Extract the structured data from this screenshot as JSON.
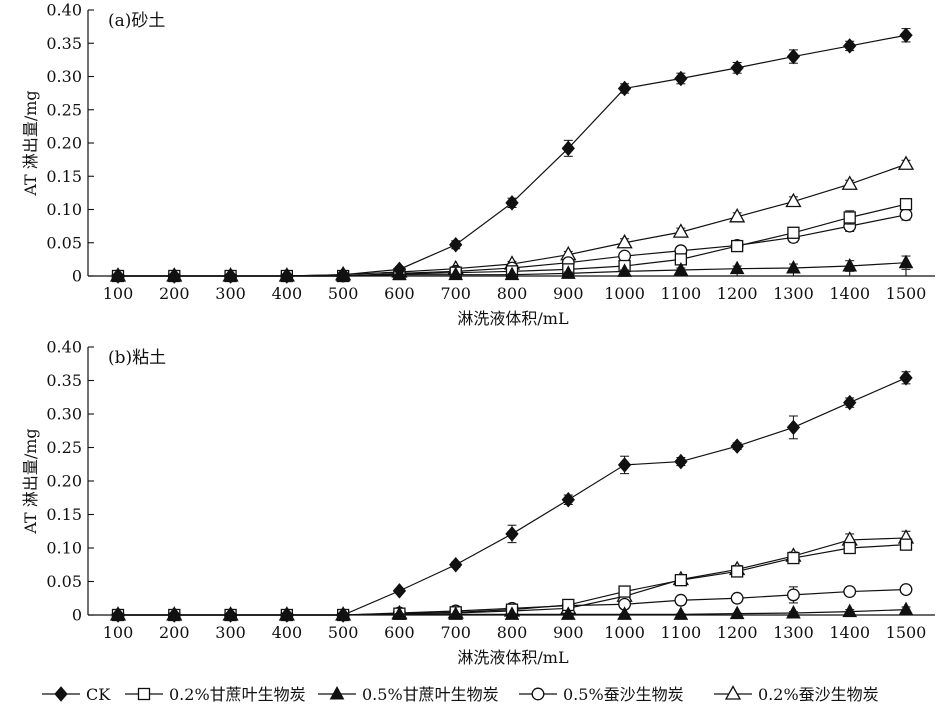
{
  "chart_data": [
    {
      "type": "line",
      "panel_label": "(a)砂土",
      "xlabel": "淋洗液体积/mL",
      "ylabel": "AT 淋出量/mg",
      "x": [
        100,
        200,
        300,
        400,
        500,
        600,
        700,
        800,
        900,
        1000,
        1100,
        1200,
        1300,
        1400,
        1500
      ],
      "xlim": [
        100,
        1500
      ],
      "ylim": [
        0,
        0.4
      ],
      "yticks": [
        "0",
        "0.05",
        "0.10",
        "0.15",
        "0.20",
        "0.25",
        "0.30",
        "0.35",
        "0.40"
      ],
      "grid": false,
      "series": [
        {
          "name": "CK",
          "marker": "diamond-filled",
          "values": [
            0,
            0,
            0,
            0,
            0.002,
            0.01,
            0.047,
            0.11,
            0.192,
            0.282,
            0.297,
            0.313,
            0.33,
            0.346,
            0.362
          ],
          "errors": [
            0,
            0,
            0,
            0,
            0.002,
            0.004,
            0.006,
            0.007,
            0.012,
            0.007,
            0.008,
            0.008,
            0.01,
            0.007,
            0.01
          ]
        },
        {
          "name": "0.2%甘蔗叶生物炭",
          "marker": "square-open",
          "values": [
            0,
            0,
            0,
            0,
            0,
            0.003,
            0.005,
            0.007,
            0.01,
            0.015,
            0.025,
            0.045,
            0.065,
            0.088,
            0.108
          ],
          "errors": [
            0,
            0,
            0,
            0,
            0,
            0.002,
            0.002,
            0.002,
            0.003,
            0.003,
            0.004,
            0.005,
            0.007,
            0.01,
            0.007
          ]
        },
        {
          "name": "0.5%甘蔗叶生物炭",
          "marker": "triangle-filled",
          "values": [
            0,
            0,
            0,
            0,
            0,
            0.002,
            0.002,
            0.002,
            0.004,
            0.007,
            0.009,
            0.011,
            0.012,
            0.015,
            0.02
          ],
          "errors": [
            0,
            0,
            0,
            0,
            0,
            0.001,
            0.001,
            0.001,
            0.002,
            0.002,
            0.003,
            0.004,
            0.006,
            0.008,
            0.01
          ]
        },
        {
          "name": "0.5%蚕沙生物炭",
          "marker": "circle-open",
          "values": [
            0,
            0,
            0,
            0,
            0,
            0.004,
            0.007,
            0.012,
            0.02,
            0.03,
            0.038,
            0.046,
            0.058,
            0.075,
            0.092
          ],
          "errors": [
            0,
            0,
            0,
            0,
            0,
            0.002,
            0.002,
            0.003,
            0.004,
            0.005,
            0.006,
            0.005,
            0.007,
            0.008,
            0.008
          ]
        },
        {
          "name": "0.2%蚕沙生物炭",
          "marker": "triangle-open",
          "values": [
            0,
            0,
            0,
            0,
            0.002,
            0.006,
            0.011,
            0.018,
            0.032,
            0.05,
            0.066,
            0.089,
            0.112,
            0.138,
            0.168
          ],
          "errors": [
            0,
            0,
            0,
            0,
            0.001,
            0.002,
            0.003,
            0.004,
            0.005,
            0.006,
            0.006,
            0.006,
            0.007,
            0.006,
            0.006
          ]
        }
      ]
    },
    {
      "type": "line",
      "panel_label": "(b)粘土",
      "xlabel": "淋洗液体积/mL",
      "ylabel": "AT 淋出量/mg",
      "x": [
        100,
        200,
        300,
        400,
        500,
        600,
        700,
        800,
        900,
        1000,
        1100,
        1200,
        1300,
        1400,
        1500
      ],
      "xlim": [
        100,
        1500
      ],
      "ylim": [
        0,
        0.4
      ],
      "yticks": [
        "0",
        "0.05",
        "0.10",
        "0.15",
        "0.20",
        "0.25",
        "0.30",
        "0.35",
        "0.40"
      ],
      "grid": false,
      "series": [
        {
          "name": "CK",
          "marker": "diamond-filled",
          "values": [
            0,
            0,
            0,
            0,
            0,
            0.036,
            0.075,
            0.121,
            0.172,
            0.224,
            0.229,
            0.252,
            0.28,
            0.317,
            0.354
          ],
          "errors": [
            0,
            0,
            0,
            0,
            0,
            0.003,
            0.004,
            0.013,
            0.007,
            0.013,
            0.006,
            0.005,
            0.017,
            0.007,
            0.009
          ]
        },
        {
          "name": "0.2%甘蔗叶生物炭",
          "marker": "square-open",
          "values": [
            0,
            0,
            0,
            0,
            0,
            0.002,
            0.004,
            0.008,
            0.015,
            0.035,
            0.052,
            0.065,
            0.085,
            0.1,
            0.105
          ],
          "errors": [
            0,
            0,
            0,
            0,
            0,
            0.001,
            0.002,
            0.002,
            0.003,
            0.005,
            0.004,
            0.004,
            0.005,
            0.007,
            0.006
          ]
        },
        {
          "name": "0.5%甘蔗叶生物炭",
          "marker": "triangle-filled",
          "values": [
            0,
            0,
            0,
            0,
            0,
            0.001,
            0.001,
            0.001,
            0.001,
            0.001,
            0.001,
            0.002,
            0.003,
            0.005,
            0.008
          ],
          "errors": [
            0,
            0,
            0,
            0,
            0,
            0.001,
            0.001,
            0.001,
            0.001,
            0.001,
            0.001,
            0.001,
            0.002,
            0.003,
            0.004
          ]
        },
        {
          "name": "0.5%蚕沙生物炭",
          "marker": "circle-open",
          "values": [
            0,
            0,
            0,
            0,
            0,
            0.003,
            0.006,
            0.01,
            0.014,
            0.016,
            0.022,
            0.025,
            0.03,
            0.035,
            0.038
          ],
          "errors": [
            0,
            0,
            0,
            0,
            0,
            0.002,
            0.002,
            0.003,
            0.003,
            0.004,
            0.005,
            0.006,
            0.012,
            0.005,
            0.006
          ]
        },
        {
          "name": "0.2%蚕沙生物炭",
          "marker": "triangle-open",
          "values": [
            0,
            0,
            0,
            0,
            0,
            0.002,
            0.003,
            0.006,
            0.01,
            0.028,
            0.053,
            0.068,
            0.088,
            0.112,
            0.115
          ],
          "errors": [
            0,
            0,
            0,
            0,
            0,
            0.001,
            0.002,
            0.003,
            0.004,
            0.005,
            0.005,
            0.006,
            0.006,
            0.009,
            0.01
          ]
        }
      ]
    }
  ],
  "legend": {
    "placement": "bottom",
    "items": [
      {
        "label": "CK",
        "marker": "diamond-filled"
      },
      {
        "label": "0.2%甘蔗叶生物炭",
        "marker": "square-open"
      },
      {
        "label": "0.5%甘蔗叶生物炭",
        "marker": "triangle-filled"
      },
      {
        "label": "0.5%蚕沙生物炭",
        "marker": "circle-open"
      },
      {
        "label": "0.2%蚕沙生物炭",
        "marker": "triangle-open"
      }
    ]
  }
}
